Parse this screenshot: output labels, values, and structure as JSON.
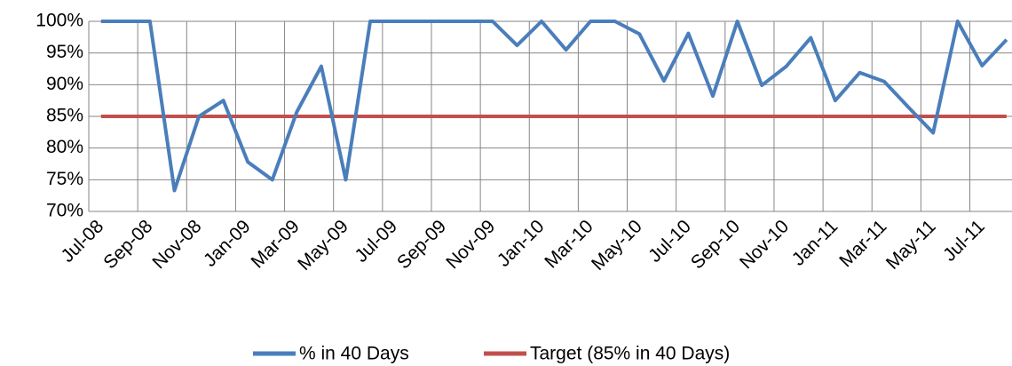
{
  "chart_data": {
    "type": "line",
    "categories": [
      "Jul-08",
      null,
      "Sep-08",
      null,
      "Nov-08",
      null,
      "Jan-09",
      null,
      "Mar-09",
      null,
      "May-09",
      null,
      "Jul-09",
      null,
      "Sep-09",
      null,
      "Nov-09",
      null,
      "Jan-10",
      null,
      "Mar-10",
      null,
      "May-10",
      null,
      "Jul-10",
      null,
      "Sep-10",
      null,
      "Nov-10",
      null,
      "Jan-11",
      null,
      "Mar-11",
      null,
      "May-11",
      null,
      "Jul-11",
      null
    ],
    "series": [
      {
        "name": "% in 40 Days",
        "color": "#4a7ebb",
        "values": [
          100,
          100,
          100,
          73.3,
          85,
          87.5,
          77.8,
          75,
          85.7,
          92.9,
          75,
          100,
          100,
          100,
          100,
          100,
          100,
          96.2,
          100,
          95.5,
          100,
          100,
          98,
          90.6,
          98.1,
          88.2,
          100,
          89.9,
          92.9,
          97.4,
          87.5,
          91.9,
          90.5,
          86.4,
          82.4,
          100,
          93,
          97.1
        ]
      },
      {
        "name": "Target (85% in 40 Days)",
        "color": "#c0504d",
        "values": [
          85,
          85,
          85,
          85,
          85,
          85,
          85,
          85,
          85,
          85,
          85,
          85,
          85,
          85,
          85,
          85,
          85,
          85,
          85,
          85,
          85,
          85,
          85,
          85,
          85,
          85,
          85,
          85,
          85,
          85,
          85,
          85,
          85,
          85,
          85,
          85,
          85,
          85
        ]
      }
    ],
    "ylim": [
      70,
      100
    ],
    "yticks": [
      {
        "value": 70,
        "label": "70%"
      },
      {
        "value": 75,
        "label": "75%"
      },
      {
        "value": 80,
        "label": "80%"
      },
      {
        "value": 85,
        "label": "85%"
      },
      {
        "value": 90,
        "label": "90%"
      },
      {
        "value": 95,
        "label": "95%"
      },
      {
        "value": 100,
        "label": "100%"
      }
    ],
    "grid": true
  }
}
